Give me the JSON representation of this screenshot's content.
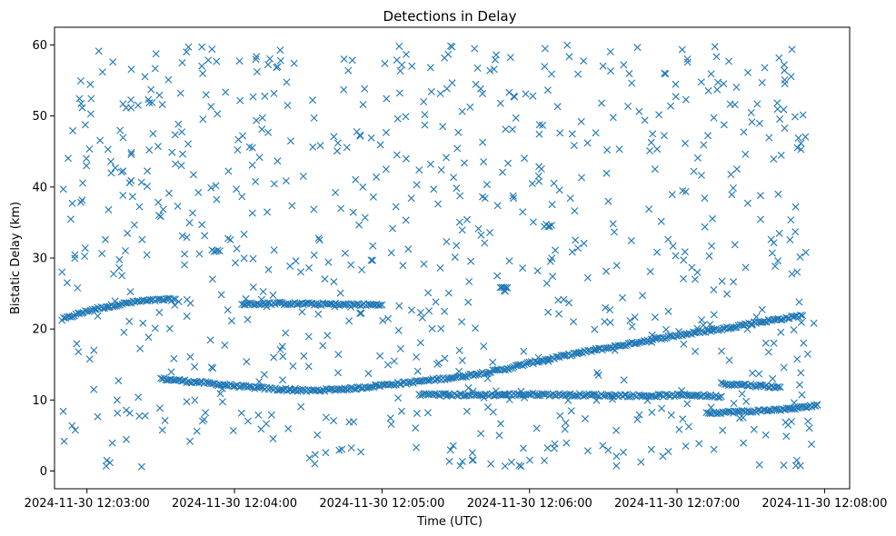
{
  "chart_data": {
    "type": "scatter",
    "title": "Detections in Delay",
    "xlabel": "Time (UTC)",
    "ylabel": "Bistatic Delay (km)",
    "marker": "x",
    "color": "#1f77b4",
    "x_unit": "minutes after 2024-11-30 12:00:00 UTC",
    "xlim": [
      2.78,
      8.17
    ],
    "ylim": [
      -2.5,
      62.5
    ],
    "x_ticks": [
      {
        "value": 3,
        "label": "2024-11-30 12:03:00"
      },
      {
        "value": 4,
        "label": "2024-11-30 12:04:00"
      },
      {
        "value": 5,
        "label": "2024-11-30 12:05:00"
      },
      {
        "value": 6,
        "label": "2024-11-30 12:06:00"
      },
      {
        "value": 7,
        "label": "2024-11-30 12:07:00"
      },
      {
        "value": 8,
        "label": "2024-11-30 12:08:00"
      }
    ],
    "y_ticks": [
      {
        "value": 0,
        "label": "0"
      },
      {
        "value": 10,
        "label": "10"
      },
      {
        "value": 20,
        "label": "20"
      },
      {
        "value": 30,
        "label": "30"
      },
      {
        "value": 40,
        "label": "40"
      },
      {
        "value": 50,
        "label": "50"
      },
      {
        "value": 60,
        "label": "60"
      }
    ],
    "tracks": [
      {
        "name": "upper-track-a",
        "points": [
          [
            2.83,
            21.3
          ],
          [
            2.95,
            22.2
          ],
          [
            3.05,
            22.8
          ],
          [
            3.2,
            23.4
          ],
          [
            3.35,
            23.9
          ],
          [
            3.5,
            24.1
          ],
          [
            3.6,
            24.2
          ]
        ]
      },
      {
        "name": "lower-track",
        "points": [
          [
            3.5,
            13.0
          ],
          [
            3.7,
            12.6
          ],
          [
            3.9,
            12.2
          ],
          [
            4.1,
            11.8
          ],
          [
            4.3,
            11.5
          ],
          [
            4.5,
            11.3
          ],
          [
            4.6,
            11.4
          ],
          [
            4.8,
            11.6
          ],
          [
            5.0,
            12.1
          ],
          [
            5.2,
            12.5
          ],
          [
            5.5,
            13.2
          ],
          [
            5.8,
            14.2
          ],
          [
            6.0,
            15.2
          ],
          [
            6.3,
            16.5
          ],
          [
            6.6,
            17.6
          ],
          [
            6.8,
            18.4
          ],
          [
            7.0,
            19.1
          ],
          [
            7.3,
            20.0
          ],
          [
            7.5,
            20.8
          ],
          [
            7.7,
            21.4
          ],
          [
            7.85,
            21.9
          ]
        ]
      },
      {
        "name": "upper-track-b",
        "points": [
          [
            4.05,
            23.5
          ],
          [
            4.3,
            23.6
          ],
          [
            4.6,
            23.5
          ],
          [
            5.0,
            23.4
          ]
        ]
      },
      {
        "name": "band-10km",
        "points": [
          [
            5.25,
            10.8
          ],
          [
            5.6,
            10.7
          ],
          [
            6.0,
            10.8
          ],
          [
            6.4,
            10.7
          ],
          [
            6.8,
            10.6
          ],
          [
            7.1,
            10.7
          ],
          [
            7.3,
            10.5
          ]
        ]
      },
      {
        "name": "tail-8km",
        "points": [
          [
            7.2,
            8.2
          ],
          [
            7.5,
            8.4
          ],
          [
            7.8,
            8.8
          ],
          [
            7.95,
            9.3
          ]
        ]
      },
      {
        "name": "side-cluster",
        "points": [
          [
            7.3,
            12.3
          ],
          [
            7.5,
            12.1
          ],
          [
            7.7,
            11.8
          ]
        ]
      },
      {
        "name": "mid-cluster-31",
        "points": [
          [
            3.85,
            31.0
          ],
          [
            3.9,
            31.0
          ]
        ]
      },
      {
        "name": "mid-cluster-26",
        "points": [
          [
            5.8,
            26.0
          ],
          [
            5.85,
            25.8
          ]
        ]
      },
      {
        "name": "mid-cluster-35",
        "points": [
          [
            6.1,
            34.6
          ],
          [
            6.15,
            34.6
          ]
        ]
      }
    ],
    "scatter_bounds": {
      "x": [
        2.83,
        7.95
      ],
      "y": [
        0.5,
        60.0
      ]
    },
    "scatter_count": 820,
    "track_point_spacing": 0.012
  }
}
